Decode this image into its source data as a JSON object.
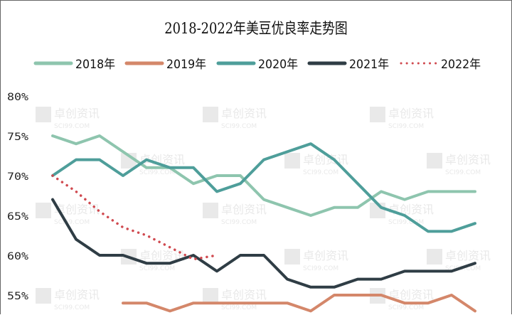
{
  "watermark": {
    "cn": "卓创资讯",
    "en": "SCI99.COM"
  },
  "chart_data": {
    "type": "line",
    "title": "2018-2022年美豆优良率走势图",
    "xlabel": "",
    "ylabel": "",
    "ylim": [
      55,
      80
    ],
    "yticks": [
      "80%",
      "75%",
      "70%",
      "65%",
      "60%",
      "55%"
    ],
    "grid": false,
    "legend_position": "top",
    "series": [
      {
        "name": "2018年",
        "color": "#8ec5ae",
        "style": "solid",
        "values": [
          75,
          74,
          75,
          73,
          71,
          71,
          69,
          70,
          70,
          67,
          66,
          65,
          66,
          66,
          68,
          67,
          68,
          68,
          68
        ]
      },
      {
        "name": "2019年",
        "color": "#d4876a",
        "style": "solid",
        "values": [
          null,
          null,
          null,
          54,
          54,
          53,
          54,
          54,
          54,
          54,
          54,
          53,
          55,
          55,
          55,
          54,
          54,
          55,
          53
        ]
      },
      {
        "name": "2020年",
        "color": "#4e9e9a",
        "style": "solid",
        "values": [
          70,
          72,
          72,
          70,
          72,
          71,
          71,
          68,
          69,
          72,
          73,
          74,
          72,
          69,
          66,
          65,
          63,
          63,
          64
        ]
      },
      {
        "name": "2021年",
        "color": "#2f3d45",
        "style": "solid",
        "values": [
          67,
          62,
          60,
          60,
          59,
          59,
          60,
          58,
          60,
          60,
          57,
          56,
          56,
          57,
          57,
          58,
          58,
          58,
          59
        ]
      },
      {
        "name": "2022年",
        "color": "#d04a50",
        "style": "dotted",
        "values": [
          70,
          68,
          65.5,
          63.5,
          62.5,
          61,
          59.5,
          60
        ]
      }
    ]
  }
}
